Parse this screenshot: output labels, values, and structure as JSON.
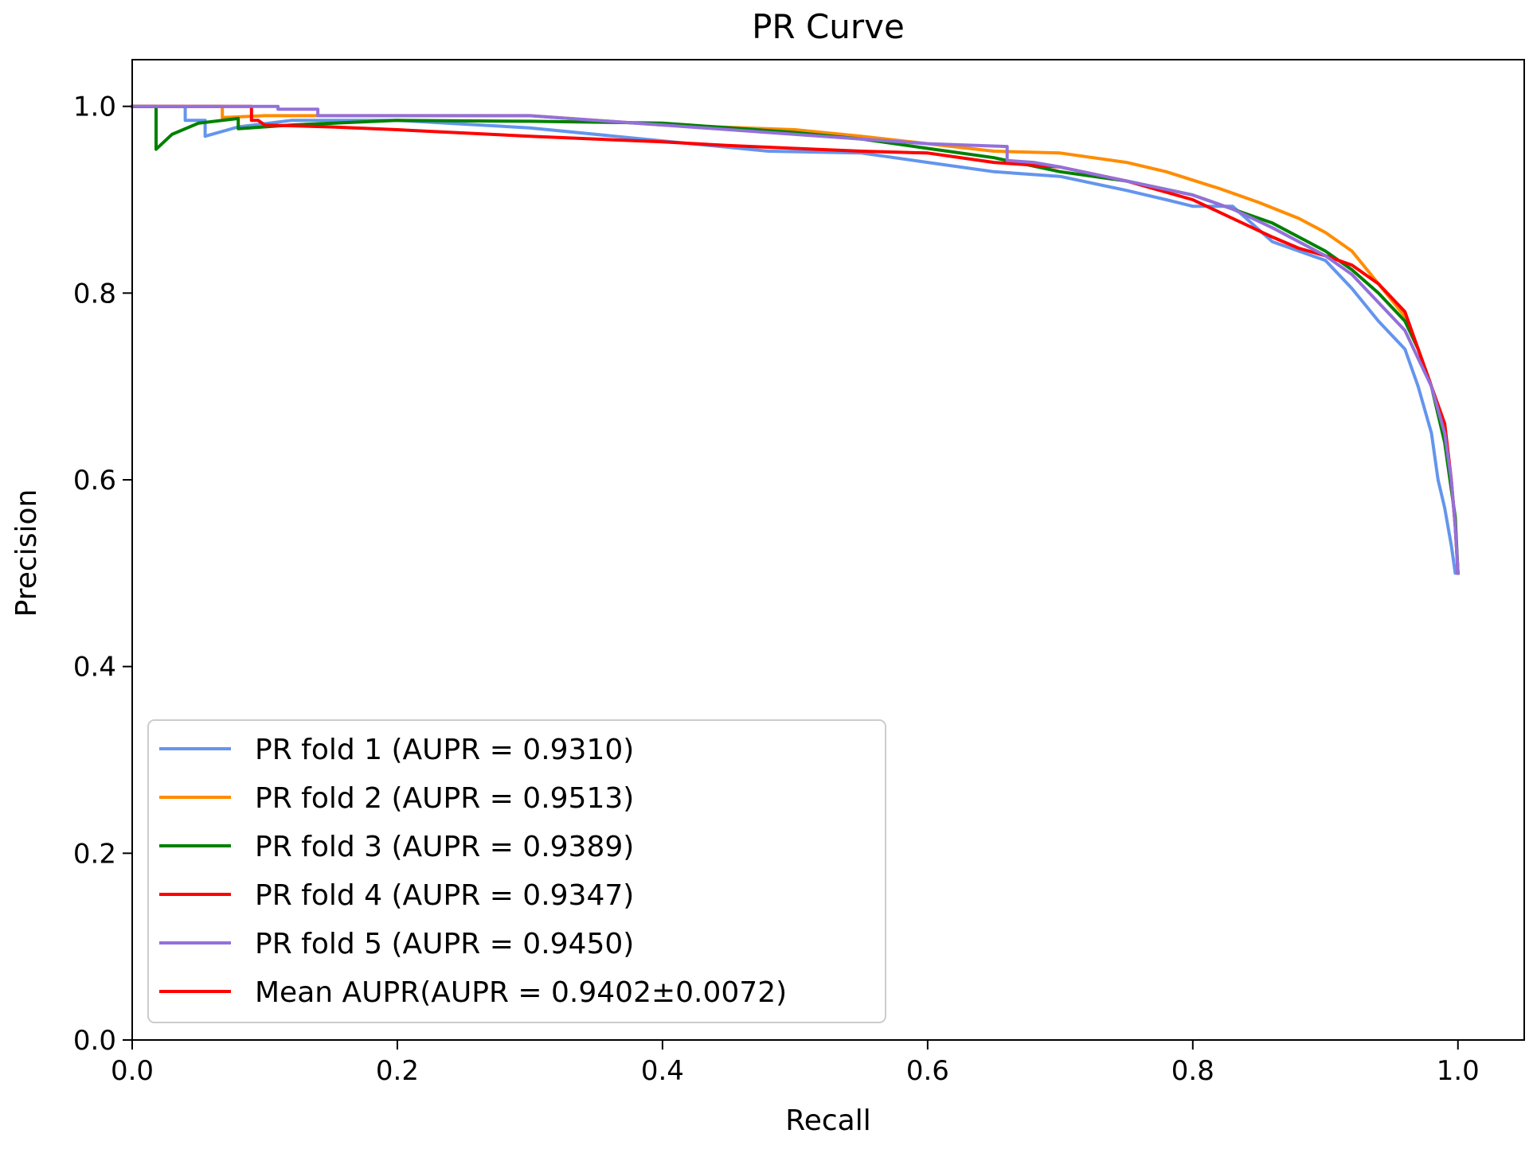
{
  "chart_data": {
    "type": "line",
    "title": "PR Curve",
    "xlabel": "Recall",
    "ylabel": "Precision",
    "xlim": [
      0.0,
      1.05
    ],
    "ylim": [
      0.0,
      1.05
    ],
    "xticks": [
      0.0,
      0.2,
      0.4,
      0.6,
      0.8,
      1.0
    ],
    "xtick_labels": [
      "0.0",
      "0.2",
      "0.4",
      "0.6",
      "0.8",
      "1.0"
    ],
    "yticks": [
      0.0,
      0.2,
      0.4,
      0.6,
      0.8,
      1.0
    ],
    "ytick_labels": [
      "0.0",
      "0.2",
      "0.4",
      "0.6",
      "0.8",
      "1.0"
    ],
    "grid": false,
    "legend_position": "lower-left",
    "series": [
      {
        "name": "PR fold 1 (AUPR = 0.9310)",
        "color": "#6495ED",
        "x": [
          0.0,
          0.04,
          0.04,
          0.055,
          0.055,
          0.08,
          0.12,
          0.2,
          0.3,
          0.4,
          0.48,
          0.55,
          0.6,
          0.65,
          0.7,
          0.75,
          0.78,
          0.8,
          0.83,
          0.86,
          0.88,
          0.9,
          0.92,
          0.94,
          0.96,
          0.97,
          0.98,
          0.985,
          0.99,
          0.995,
          0.998,
          1.0
        ],
        "y": [
          1.0,
          1.0,
          0.985,
          0.985,
          0.968,
          0.978,
          0.985,
          0.985,
          0.977,
          0.963,
          0.952,
          0.95,
          0.94,
          0.93,
          0.925,
          0.91,
          0.9,
          0.893,
          0.893,
          0.855,
          0.845,
          0.835,
          0.805,
          0.77,
          0.74,
          0.7,
          0.65,
          0.6,
          0.57,
          0.53,
          0.5,
          0.5
        ]
      },
      {
        "name": "PR fold 2 (AUPR = 0.9513)",
        "color": "#FF8C00",
        "x": [
          0.0,
          0.068,
          0.068,
          0.1,
          0.15,
          0.2,
          0.3,
          0.4,
          0.5,
          0.55,
          0.6,
          0.65,
          0.7,
          0.75,
          0.78,
          0.82,
          0.85,
          0.88,
          0.9,
          0.92,
          0.94,
          0.96,
          0.97,
          0.98,
          0.99,
          0.995,
          0.998,
          1.0
        ],
        "y": [
          1.0,
          1.0,
          0.988,
          0.99,
          0.99,
          0.99,
          0.99,
          0.98,
          0.975,
          0.968,
          0.96,
          0.952,
          0.95,
          0.94,
          0.93,
          0.912,
          0.897,
          0.88,
          0.865,
          0.845,
          0.81,
          0.775,
          0.74,
          0.7,
          0.66,
          0.6,
          0.55,
          0.5
        ]
      },
      {
        "name": "PR fold 3 (AUPR = 0.9389)",
        "color": "#008000",
        "x": [
          0.0,
          0.018,
          0.018,
          0.03,
          0.05,
          0.08,
          0.08,
          0.12,
          0.2,
          0.3,
          0.4,
          0.5,
          0.55,
          0.6,
          0.65,
          0.7,
          0.75,
          0.8,
          0.83,
          0.86,
          0.88,
          0.9,
          0.92,
          0.94,
          0.96,
          0.97,
          0.98,
          0.99,
          0.995,
          0.998,
          1.0
        ],
        "y": [
          1.0,
          1.0,
          0.954,
          0.97,
          0.982,
          0.987,
          0.976,
          0.98,
          0.985,
          0.984,
          0.982,
          0.972,
          0.965,
          0.955,
          0.945,
          0.93,
          0.92,
          0.905,
          0.89,
          0.875,
          0.86,
          0.845,
          0.825,
          0.8,
          0.77,
          0.74,
          0.7,
          0.64,
          0.59,
          0.56,
          0.5
        ]
      },
      {
        "name": "PR fold 4 (AUPR = 0.9347)",
        "color": "#FF0000",
        "x": [
          0.0,
          0.09,
          0.09,
          0.095,
          0.1,
          0.15,
          0.2,
          0.3,
          0.4,
          0.45,
          0.5,
          0.55,
          0.6,
          0.65,
          0.7,
          0.75,
          0.8,
          0.83,
          0.86,
          0.88,
          0.9,
          0.92,
          0.94,
          0.96,
          0.97,
          0.98,
          0.99,
          0.995,
          0.998,
          1.0
        ],
        "y": [
          1.0,
          1.0,
          0.985,
          0.985,
          0.98,
          0.978,
          0.975,
          0.968,
          0.962,
          0.958,
          0.955,
          0.952,
          0.95,
          0.94,
          0.935,
          0.92,
          0.9,
          0.88,
          0.86,
          0.848,
          0.84,
          0.83,
          0.81,
          0.78,
          0.74,
          0.7,
          0.66,
          0.6,
          0.55,
          0.5
        ]
      },
      {
        "name": "PR fold 5 (AUPR = 0.9450)",
        "color": "#9370DB",
        "x": [
          0.0,
          0.11,
          0.11,
          0.14,
          0.14,
          0.2,
          0.3,
          0.4,
          0.5,
          0.6,
          0.66,
          0.66,
          0.68,
          0.7,
          0.75,
          0.8,
          0.83,
          0.86,
          0.88,
          0.9,
          0.92,
          0.94,
          0.96,
          0.97,
          0.98,
          0.99,
          0.995,
          0.998,
          1.0
        ],
        "y": [
          1.0,
          1.0,
          0.997,
          0.997,
          0.99,
          0.99,
          0.99,
          0.98,
          0.97,
          0.96,
          0.957,
          0.942,
          0.94,
          0.935,
          0.92,
          0.905,
          0.89,
          0.87,
          0.855,
          0.84,
          0.82,
          0.79,
          0.76,
          0.73,
          0.7,
          0.65,
          0.6,
          0.55,
          0.5
        ]
      },
      {
        "name": "Mean AUPR(AUPR = 0.9402±0.0072)",
        "color": "#FF0000",
        "line_only_in_legend": true
      }
    ]
  }
}
